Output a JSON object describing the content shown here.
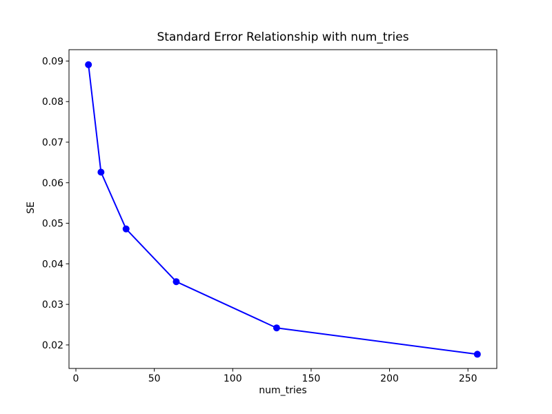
{
  "figure": {
    "background": "#ffffff"
  },
  "chart_data": {
    "type": "line",
    "title": "Standard Error Relationship with num_tries",
    "xlabel": "num_tries",
    "ylabel": "SE",
    "x": [
      8,
      16,
      32,
      64,
      128,
      256
    ],
    "y": [
      0.0891,
      0.0626,
      0.0486,
      0.0356,
      0.0242,
      0.0177
    ],
    "xlim": [
      -4.4,
      268.4
    ],
    "ylim": [
      0.0142,
      0.0928
    ],
    "xticks": [
      0,
      50,
      100,
      150,
      200,
      250
    ],
    "xtick_labels": [
      "0",
      "50",
      "100",
      "150",
      "200",
      "250"
    ],
    "yticks": [
      0.02,
      0.03,
      0.04,
      0.05,
      0.06,
      0.07,
      0.08,
      0.09
    ],
    "ytick_labels": [
      "0.02",
      "0.03",
      "0.04",
      "0.05",
      "0.06",
      "0.07",
      "0.08",
      "0.09"
    ],
    "line_color": "#0000ff",
    "marker": "circle",
    "marker_color": "#0000ff",
    "grid": false,
    "legend": "none",
    "axes_color": "#000000",
    "text_color": "#000000"
  }
}
